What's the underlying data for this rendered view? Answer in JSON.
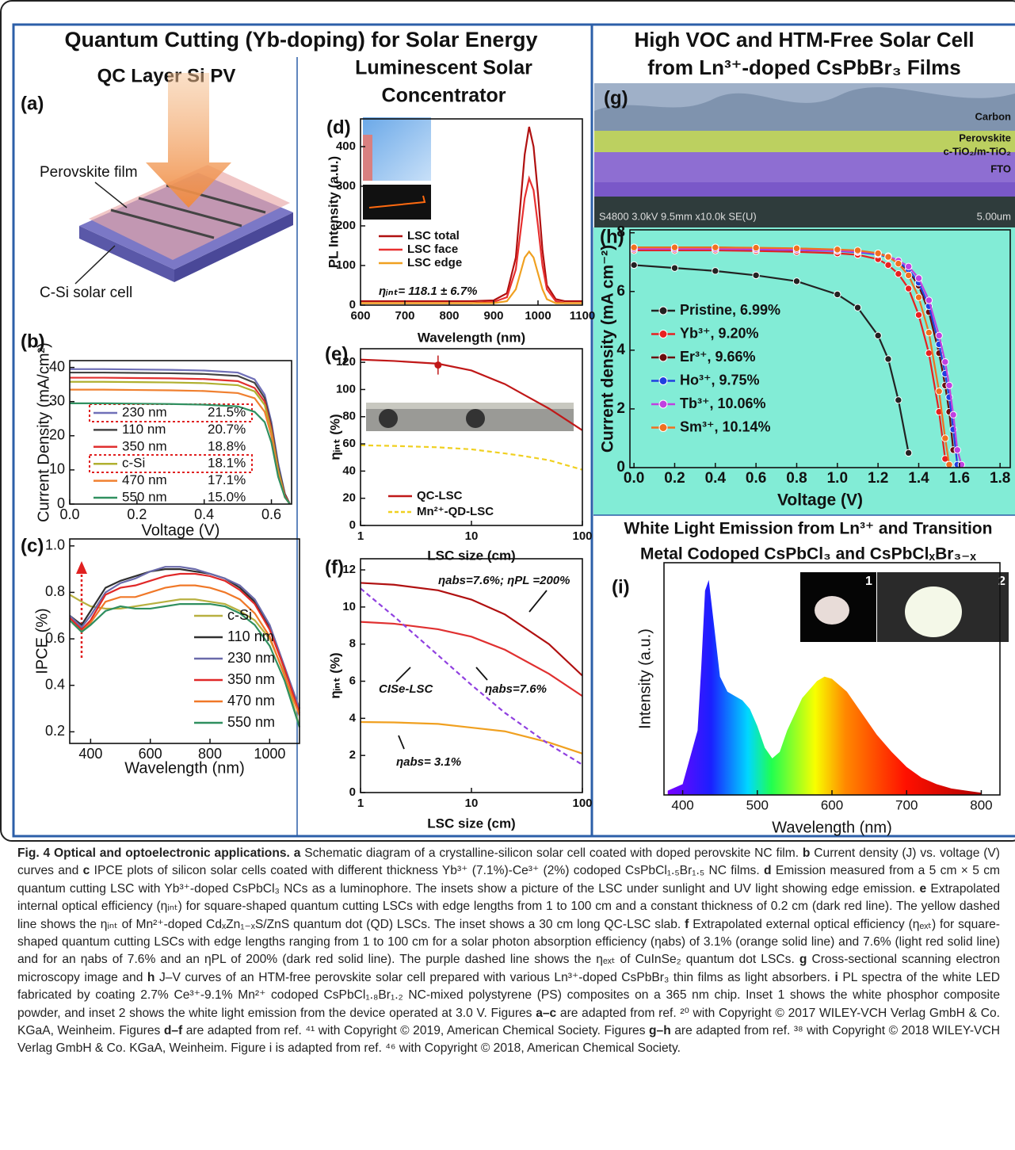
{
  "figure": {
    "header_left": "Quantum Cutting (Yb-doping) for Solar Energy",
    "header_right": [
      "High VOC and HTM-Free Solar Cell",
      "from Ln³⁺-doped CsPbBr₃ Films"
    ],
    "panel_a": {
      "label": "(a)",
      "title": "QC Layer Si PV",
      "callouts": [
        "Perovskite film",
        "C-Si solar cell"
      ]
    },
    "panel_d_title": [
      "Luminescent Solar",
      "Concentrator"
    ],
    "panel_g": {
      "label": "(g)",
      "layers": [
        "Carbon",
        "Perovskite",
        "c-TiO₂/m-TiO₂",
        "FTO"
      ],
      "info": "S4800 3.0kV 9.5mm x10.0k SE(U)",
      "scale": "5.00um"
    },
    "section_i_title": [
      "White Light Emission from Ln³⁺ and Transition",
      "Metal Codoped CsPbCl₃ and CsPbClₓBr₃₋ₓ"
    ],
    "panel_i_insets": [
      "1",
      "2"
    ]
  },
  "chart_data": [
    {
      "type": "line",
      "label": "(b)",
      "xlabel": "Voltage (V)",
      "ylabel": "Current Density (mA/cm²)",
      "xlim": [
        0,
        0.66
      ],
      "ylim": [
        0,
        42
      ],
      "xticks": [
        {
          "value": 0,
          "label": "0.0"
        },
        0.2,
        0.4,
        0.6
      ],
      "yticks": [
        0,
        10,
        20,
        30,
        40
      ],
      "x": [
        0,
        0.1,
        0.2,
        0.3,
        0.4,
        0.5,
        0.55,
        0.58,
        0.6,
        0.62,
        0.64,
        0.655
      ],
      "series": [
        {
          "name": "230 nm",
          "pce": "21.5%",
          "color": "#7070b8",
          "values": [
            39.5,
            39.5,
            39.4,
            39.3,
            39.1,
            38.5,
            36.5,
            32,
            24,
            12,
            3,
            0
          ]
        },
        {
          "name": "110 nm",
          "pce": "20.7%",
          "color": "#444444",
          "values": [
            38.5,
            38.5,
            38.4,
            38.3,
            38.1,
            37.5,
            35.5,
            31,
            23,
            11,
            3,
            0
          ]
        },
        {
          "name": "350 nm",
          "pce": "18.8%",
          "color": "#e03030",
          "values": [
            37,
            37,
            36.9,
            36.8,
            36.6,
            36,
            34,
            30,
            22,
            10,
            2.5,
            0
          ]
        },
        {
          "name": "c-Si",
          "pce": "18.1%",
          "color": "#b0b030",
          "values": [
            35.8,
            35.8,
            35.7,
            35.6,
            35.4,
            34.8,
            33,
            29,
            21,
            10,
            2,
            0
          ]
        },
        {
          "name": "470 nm",
          "pce": "17.1%",
          "color": "#f08030",
          "values": [
            33.5,
            33.5,
            33.4,
            33.3,
            33.1,
            32.5,
            31,
            27,
            20,
            9,
            2,
            0
          ]
        },
        {
          "name": "550 nm",
          "pce": "15.0%",
          "color": "#309060",
          "values": [
            29.5,
            29.5,
            29.4,
            29.3,
            29.1,
            28.6,
            27,
            24,
            18,
            8,
            2,
            0
          ]
        }
      ]
    },
    {
      "type": "line",
      "label": "(c)",
      "xlabel": "Wavelength (nm)",
      "ylabel": "IPCE (%)",
      "xlim": [
        330,
        1100
      ],
      "ylim": [
        0.15,
        1.03
      ],
      "xticks": [
        400,
        600,
        800,
        1000
      ],
      "yticks": [
        0.2,
        0.4,
        0.6,
        0.8,
        {
          "value": 1,
          "label": "1.0"
        }
      ],
      "x": [
        330,
        370,
        400,
        450,
        500,
        550,
        600,
        650,
        700,
        750,
        800,
        850,
        900,
        950,
        1000,
        1050,
        1100
      ],
      "series": [
        {
          "name": "c-Si",
          "color": "#b8b040",
          "values": [
            0.79,
            0.76,
            0.74,
            0.73,
            0.73,
            0.74,
            0.75,
            0.76,
            0.77,
            0.77,
            0.76,
            0.75,
            0.72,
            0.68,
            0.6,
            0.45,
            0.22
          ]
        },
        {
          "name": "110 nm",
          "color": "#303030",
          "values": [
            0.7,
            0.66,
            0.72,
            0.82,
            0.85,
            0.87,
            0.89,
            0.9,
            0.9,
            0.89,
            0.88,
            0.86,
            0.82,
            0.76,
            0.65,
            0.47,
            0.3
          ]
        },
        {
          "name": "230 nm",
          "color": "#6a6aaa",
          "values": [
            0.7,
            0.65,
            0.7,
            0.8,
            0.84,
            0.86,
            0.89,
            0.91,
            0.91,
            0.9,
            0.88,
            0.86,
            0.83,
            0.77,
            0.66,
            0.48,
            0.3
          ]
        },
        {
          "name": "350 nm",
          "color": "#e02828",
          "values": [
            0.69,
            0.64,
            0.68,
            0.79,
            0.82,
            0.83,
            0.85,
            0.87,
            0.88,
            0.88,
            0.87,
            0.85,
            0.81,
            0.75,
            0.64,
            0.47,
            0.28
          ]
        },
        {
          "name": "470 nm",
          "color": "#f07828",
          "values": [
            0.68,
            0.63,
            0.67,
            0.76,
            0.78,
            0.78,
            0.8,
            0.82,
            0.83,
            0.83,
            0.82,
            0.8,
            0.77,
            0.71,
            0.61,
            0.44,
            0.27
          ]
        },
        {
          "name": "550 nm",
          "color": "#2f8f5f",
          "values": [
            0.68,
            0.63,
            0.66,
            0.72,
            0.74,
            0.73,
            0.73,
            0.74,
            0.75,
            0.75,
            0.75,
            0.74,
            0.71,
            0.66,
            0.57,
            0.42,
            0.22
          ]
        }
      ]
    },
    {
      "type": "line",
      "label": "(d)",
      "xlabel": "Wavelength (nm)",
      "ylabel": "PL Intensity (a.u.)",
      "xlim": [
        600,
        1100
      ],
      "ylim": [
        0,
        470
      ],
      "xticks": [
        600,
        700,
        800,
        900,
        1000,
        1100
      ],
      "yticks": [
        0,
        100,
        200,
        300,
        400
      ],
      "x": [
        600,
        650,
        700,
        750,
        800,
        850,
        900,
        930,
        950,
        960,
        970,
        980,
        990,
        1000,
        1010,
        1020,
        1040,
        1060,
        1100
      ],
      "series": [
        {
          "name": "LSC total",
          "color": "#b01010",
          "values": [
            10,
            10,
            10,
            10,
            10,
            10,
            12,
            30,
            120,
            250,
            380,
            450,
            400,
            280,
            140,
            50,
            15,
            10,
            10
          ]
        },
        {
          "name": "LSC face",
          "color": "#e83030",
          "values": [
            5,
            5,
            5,
            5,
            5,
            5,
            8,
            20,
            90,
            180,
            270,
            320,
            290,
            200,
            100,
            40,
            10,
            5,
            5
          ]
        },
        {
          "name": "LSC edge",
          "color": "#f0a020",
          "values": [
            5,
            5,
            5,
            5,
            5,
            5,
            5,
            10,
            40,
            80,
            120,
            135,
            120,
            80,
            40,
            15,
            5,
            5,
            5
          ]
        }
      ],
      "annotations": [
        "ηᵢₙₜ= 118.1 ± 6.7%"
      ]
    },
    {
      "type": "line",
      "label": "(e)",
      "xlabel": "LSC size (cm)",
      "ylabel": "ηᵢₙₜ (%)",
      "xscale": "log",
      "xlim": [
        1,
        100
      ],
      "ylim": [
        0,
        130
      ],
      "xticks": [
        1,
        10,
        100
      ],
      "yticks": [
        0,
        20,
        40,
        60,
        80,
        100,
        120
      ],
      "x": [
        1,
        2,
        5,
        10,
        20,
        30,
        50,
        100
      ],
      "series": [
        {
          "name": "QC-LSC",
          "color": "#c01818",
          "values": [
            122,
            121,
            119,
            114,
            104,
            96,
            86,
            70
          ]
        },
        {
          "name": "Mn²⁺-QD-LSC",
          "color": "#f0d020",
          "dashed": true,
          "values": [
            59,
            58.5,
            57.5,
            56,
            53,
            51,
            48,
            41
          ]
        }
      ],
      "error_point": {
        "x": 5,
        "value": 118,
        "error": 7,
        "color": "#c01818"
      }
    },
    {
      "type": "line",
      "label": "(f)",
      "xlabel": "LSC size (cm)",
      "ylabel": "ηᵢₙₜ (%)",
      "xscale": "log",
      "xlim": [
        1,
        100
      ],
      "ylim": [
        0,
        12.6
      ],
      "xticks": [
        1,
        10,
        100
      ],
      "yticks": [
        0,
        2,
        4,
        6,
        8,
        10,
        12
      ],
      "x": [
        1,
        2,
        5,
        10,
        20,
        50,
        100
      ],
      "series": [
        {
          "color": "#b01010",
          "values": [
            11.3,
            11.2,
            10.9,
            10.4,
            9.6,
            8.0,
            6.3
          ]
        },
        {
          "color": "#e03030",
          "values": [
            9.2,
            9.1,
            8.8,
            8.4,
            7.7,
            6.4,
            5.2
          ]
        },
        {
          "color": "#f0a020",
          "values": [
            3.8,
            3.78,
            3.7,
            3.5,
            3.3,
            2.7,
            2.1
          ]
        },
        {
          "color": "#9040e0",
          "dashed": true,
          "values": [
            11,
            9.5,
            7.4,
            5.8,
            4.3,
            2.6,
            1.5
          ]
        }
      ],
      "annotations": [
        "ηabs=7.6%; ηPL =200%",
        "ηabs=7.6%",
        "ηabs= 3.1%",
        "CISe-LSC"
      ]
    },
    {
      "type": "line",
      "label": "(h)",
      "xlabel": "Voltage (V)",
      "ylabel": "Current density (mA cm⁻²)",
      "markers": true,
      "xlim": [
        -0.02,
        1.85
      ],
      "ylim": [
        0,
        8.1
      ],
      "xticks": [
        {
          "value": 0,
          "label": "0.0"
        },
        0.2,
        0.4,
        0.6,
        0.8,
        {
          "value": 1,
          "label": "1.0"
        },
        1.2,
        1.4,
        1.6,
        1.8
      ],
      "yticks": [
        0,
        2,
        4,
        6,
        8
      ],
      "x": [
        0,
        0.2,
        0.4,
        0.6,
        0.8,
        1.0,
        1.1,
        1.2,
        1.25,
        1.3,
        1.35,
        1.4,
        1.45,
        1.5,
        1.53,
        1.55,
        1.57,
        1.59,
        1.61
      ],
      "series": [
        {
          "name": "Pristine, 6.99%",
          "color": "#222222",
          "values": [
            6.9,
            6.8,
            6.7,
            6.55,
            6.35,
            5.9,
            5.45,
            4.5,
            3.7,
            2.3,
            0.5,
            null,
            null,
            null,
            null,
            null,
            null,
            null,
            null
          ]
        },
        {
          "name": "Yb³⁺, 9.20%",
          "color": "#e82020",
          "values": [
            7.4,
            7.4,
            7.4,
            7.38,
            7.35,
            7.3,
            7.25,
            7.1,
            6.9,
            6.6,
            6.1,
            5.2,
            3.9,
            1.9,
            0.3,
            null,
            null,
            null,
            null
          ]
        },
        {
          "name": "Er³⁺,  9.66%",
          "color": "#6a0e0e",
          "values": [
            7.5,
            7.5,
            7.5,
            7.48,
            7.46,
            7.42,
            7.38,
            7.3,
            7.2,
            7.0,
            6.7,
            6.2,
            5.3,
            3.9,
            2.8,
            1.9,
            0.6,
            null,
            null
          ]
        },
        {
          "name": "Ho³⁺, 9.75%",
          "color": "#2040e0",
          "values": [
            7.45,
            7.45,
            7.45,
            7.43,
            7.41,
            7.38,
            7.34,
            7.26,
            7.17,
            7.0,
            6.75,
            6.3,
            5.5,
            4.2,
            3.2,
            2.4,
            1.3,
            0.1,
            null
          ]
        },
        {
          "name": "Tb³⁺, 10.06%",
          "color": "#c040e0",
          "values": [
            7.45,
            7.45,
            7.45,
            7.44,
            7.42,
            7.39,
            7.36,
            7.29,
            7.2,
            7.05,
            6.85,
            6.45,
            5.7,
            4.5,
            3.6,
            2.8,
            1.8,
            0.6,
            0.1
          ]
        },
        {
          "name": "Sm³⁺, 10.14%",
          "color": "#f07020",
          "values": [
            7.5,
            7.5,
            7.5,
            7.49,
            7.47,
            7.43,
            7.4,
            7.3,
            7.18,
            6.95,
            6.55,
            5.8,
            4.6,
            2.6,
            1.0,
            0.1,
            null,
            null,
            null
          ]
        }
      ]
    },
    {
      "type": "area",
      "label": "(i)",
      "xlabel": "Wavelength (nm)",
      "ylabel": "Intensity (a.u.)",
      "xlim": [
        375,
        825
      ],
      "ylim": [
        0,
        1.08
      ],
      "xticks": [
        400,
        500,
        600,
        700,
        800
      ],
      "x": [
        380,
        400,
        420,
        425,
        430,
        435,
        440,
        450,
        460,
        470,
        480,
        490,
        500,
        510,
        520,
        530,
        540,
        560,
        580,
        590,
        600,
        620,
        640,
        660,
        680,
        700,
        720,
        740,
        760,
        780,
        800
      ],
      "series": [
        {
          "values": [
            0.02,
            0.05,
            0.3,
            0.6,
            0.95,
            1.0,
            0.85,
            0.55,
            0.48,
            0.46,
            0.44,
            0.4,
            0.32,
            0.22,
            0.17,
            0.2,
            0.3,
            0.45,
            0.53,
            0.55,
            0.54,
            0.48,
            0.38,
            0.28,
            0.2,
            0.13,
            0.08,
            0.05,
            0.03,
            0.02,
            0.01
          ]
        }
      ]
    }
  ],
  "caption": {
    "title": "Fig. 4 Optical and optoelectronic applications.",
    "parts": [
      {
        "label": "a",
        "text": " Schematic diagram of a crystalline-silicon solar cell coated with doped perovskite NC film. "
      },
      {
        "label": "b",
        "text": " Current density (J) vs. voltage (V) curves and "
      },
      {
        "label": "c",
        "text": " IPCE plots of silicon solar cells coated with different thickness Yb³⁺ (7.1%)-Ce³⁺ (2%) codoped CsPbCl₁.₅Br₁.₅ NC films. "
      },
      {
        "label": "d",
        "text": " Emission measured from a 5 cm × 5 cm quantum cutting LSC with Yb³⁺-doped CsPbCl₃ NCs as a luminophore. The insets show a picture of the LSC under sunlight and UV light showing edge emission. "
      },
      {
        "label": "e",
        "text": " Extrapolated internal optical efficiency (ηᵢₙₜ) for square-shaped quantum cutting LSCs with edge lengths from 1 to 100 cm and a constant thickness of 0.2 cm (dark red line). The yellow dashed line shows the ηᵢₙₜ of Mn²⁺-doped CdₓZn₁₋ₓS/ZnS quantum dot (QD) LSCs. The inset shows a 30 cm long QC-LSC slab. "
      },
      {
        "label": "f",
        "text": " Extrapolated external optical efficiency (ηₑₓₜ) for square-shaped quantum cutting LSCs with edge lengths ranging from 1 to 100 cm for a solar photon absorption efficiency (ηabs) of 3.1% (orange solid line) and 7.6% (light red solid line) and for an ηabs of 7.6% and an ηPL of 200% (dark red solid line). The purple dashed line shows the ηₑₓₜ of CuInSe₂ quantum dot LSCs. "
      },
      {
        "label": "g",
        "text": " Cross-sectional scanning electron microscopy image and "
      },
      {
        "label": "h",
        "text": " J–V curves of an HTM-free perovskite solar cell prepared with various Ln³⁺-doped CsPbBr₃ thin films as light absorbers. "
      },
      {
        "label": "i",
        "text": " PL spectra of the white LED fabricated by coating 2.7% Ce³⁺-9.1% Mn²⁺ codoped CsPbCl₁.₈Br₁.₂ NC-mixed polystyrene (PS) composites on a 365 nm chip. Inset 1 shows the white phosphor composite powder, and inset 2 shows the white light emission from the device operated at 3.0 V. Figures "
      },
      {
        "label": "a–c",
        "text": " are adapted from ref. ²⁰ with Copyright © 2017 WILEY-VCH Verlag GmbH & Co. KGaA, Weinheim. Figures "
      },
      {
        "label": "d–f",
        "text": " are adapted from ref. ⁴¹ with Copyright © 2019, American Chemical Society. Figures "
      },
      {
        "label": "g–h",
        "text": " are adapted from ref. ³⁸ with Copyright © 2018 WILEY-VCH Verlag GmbH & Co. KGaA, Weinheim. Figure i is adapted from ref. ⁴⁶ with Copyright © 2018, American Chemical Society."
      }
    ]
  }
}
